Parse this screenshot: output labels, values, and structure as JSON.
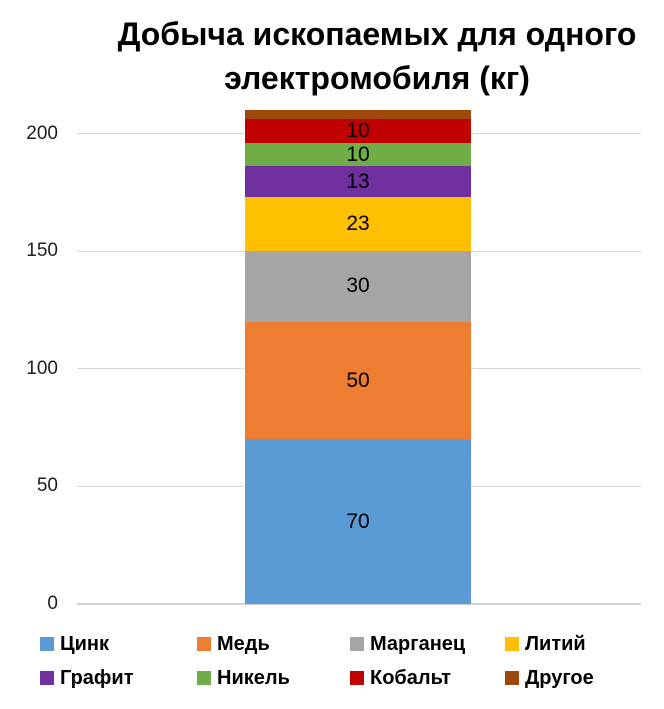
{
  "title": {
    "line1": "Добыча ископаемых для одного",
    "line2": "электромобиля (кг)"
  },
  "chart_data": {
    "type": "bar",
    "stacked": true,
    "title": "Добыча ископаемых для одного электромобиля (кг)",
    "series": [
      {
        "name": "Цинк",
        "value": 70,
        "color": "#5B9BD5",
        "data_label": "70"
      },
      {
        "name": "Медь",
        "value": 50,
        "color": "#ED7D31",
        "data_label": "50"
      },
      {
        "name": "Марганец",
        "value": 30,
        "color": "#A5A5A5",
        "data_label": "30"
      },
      {
        "name": "Литий",
        "value": 23,
        "color": "#FFC000",
        "data_label": "23"
      },
      {
        "name": "Графит",
        "value": 13,
        "color": "#7030A0",
        "data_label": "13"
      },
      {
        "name": "Никель",
        "value": 10,
        "color": "#70AD47",
        "data_label": "10"
      },
      {
        "name": "Кобальт",
        "value": 10,
        "color": "#C00000",
        "data_label": "10"
      },
      {
        "name": "Другое",
        "value": 4,
        "color": "#9E480E",
        "data_label": ""
      }
    ],
    "xlabel": "",
    "ylabel": "",
    "yticks": [
      0,
      50,
      100,
      150,
      200
    ],
    "ylim": [
      0,
      210
    ],
    "grid": true,
    "legend_position": "bottom",
    "legend": [
      "Цинк",
      "Медь",
      "Марганец",
      "Литий",
      "Графит",
      "Никель",
      "Кобальт",
      "Другое"
    ]
  },
  "colors": {
    "background": "#FFFFFF",
    "gridline": "#D9D9D9",
    "axis_line": "#D2D2D2",
    "title_text": "#000000",
    "axis_text": "#1F1F1F",
    "data_label_text": "#000000"
  }
}
